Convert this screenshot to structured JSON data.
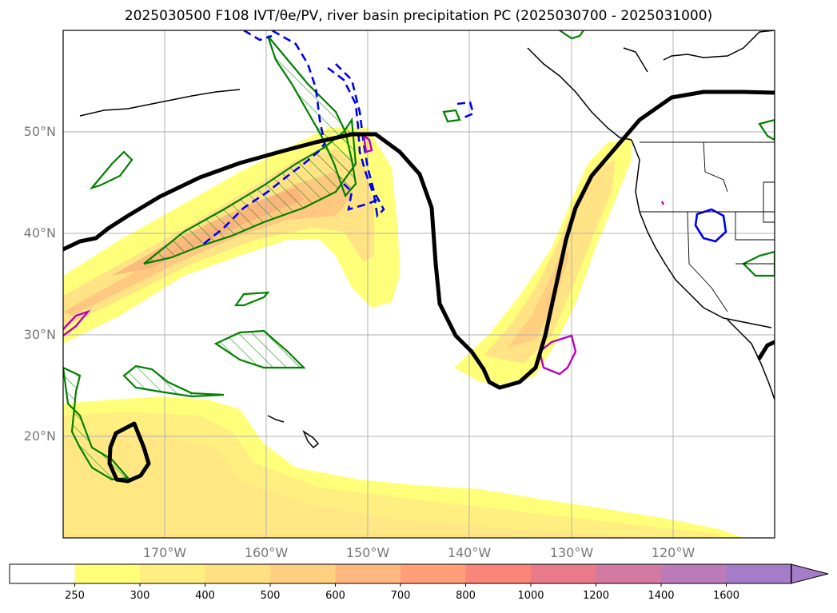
{
  "title": "2025030500 F108 IVT/θe/PV, river basin precipitation PC (2025030700 - 2025031000)",
  "map": {
    "projection": "PlateCarree",
    "extent": {
      "lon_min": -180,
      "lon_max": -110,
      "lat_min": 10,
      "lat_max": 60
    },
    "lat_ticks": [
      "20°N",
      "30°N",
      "40°N",
      "50°N"
    ],
    "lon_ticks": [
      "170°W",
      "160°W",
      "150°W",
      "140°W",
      "130°W",
      "120°W"
    ],
    "grid": true,
    "colors": {
      "ivt_contour": "#000000",
      "theta_e_contour": "#008000",
      "pv_dashed": "#0000ee",
      "pv_solid_blue": "#0000ee",
      "precip_pc": "#bb00bb"
    }
  },
  "colorbar": {
    "orientation": "horizontal",
    "extend": "max",
    "ticks": [
      "250",
      "300",
      "400",
      "500",
      "600",
      "700",
      "800",
      "1000",
      "1200",
      "1400",
      "1600"
    ],
    "colors": [
      "#ffffff",
      "#ffff7a",
      "#ffef80",
      "#ffe080",
      "#ffd080",
      "#ffb880",
      "#ff9e78",
      "#f98678",
      "#e97a8a",
      "#d37aa2",
      "#bb7ab8",
      "#a57cc8"
    ]
  }
}
